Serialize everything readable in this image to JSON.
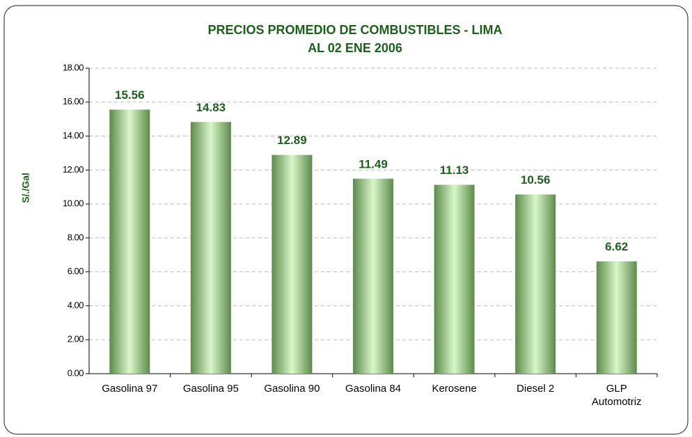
{
  "chart_data": {
    "type": "bar",
    "title": "PRECIOS PROMEDIO DE COMBUSTIBLES - LIMA",
    "subtitle": "AL 02 ENE 2006",
    "y_label": "S/./Gal",
    "categories": [
      "Gasolina 97",
      "Gasolina 95",
      "Gasolina 90",
      "Gasolina 84",
      "Kerosene",
      "Diesel 2",
      "GLP Automotriz"
    ],
    "values": [
      15.56,
      14.83,
      12.89,
      11.49,
      11.13,
      10.56,
      6.62
    ],
    "color": "#7fb06a",
    "ylim": [
      0,
      18
    ],
    "yticks": [
      {
        "value": 0,
        "label": "0.00"
      },
      {
        "value": 2,
        "label": "2.00"
      },
      {
        "value": 4,
        "label": "4.00"
      },
      {
        "value": 6,
        "label": "6.00"
      },
      {
        "value": 8,
        "label": "8.00"
      },
      {
        "value": 10,
        "label": "10.00"
      },
      {
        "value": 12,
        "label": "12.00"
      },
      {
        "value": 14,
        "label": "14.00"
      },
      {
        "value": 16,
        "label": "16.00"
      },
      {
        "value": 18,
        "label": "18.00"
      }
    ],
    "grid": true
  }
}
